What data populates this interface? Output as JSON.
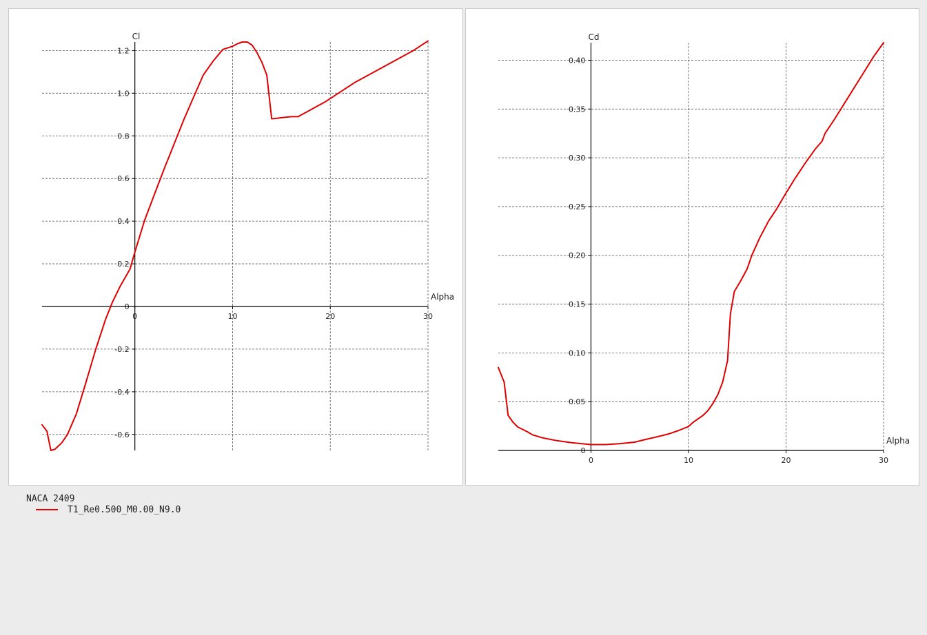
{
  "colors": {
    "series": "#e00000",
    "axis": "#000000",
    "grid": "#555555"
  },
  "legend": {
    "foil_name": "NACA 2409",
    "series_name": "T1_Re0.500_M0.00_N9.0"
  },
  "chart_data": [
    {
      "type": "line",
      "title": "",
      "xlabel": "Alpha",
      "ylabel": "Cl",
      "xlim": [
        -9.5,
        30
      ],
      "ylim": [
        -0.675,
        1.24
      ],
      "grid": true,
      "x_ticks": [
        0,
        10,
        20,
        30
      ],
      "x_tick_labels": [
        "0",
        "10",
        "20",
        "30"
      ],
      "y_ticks": [
        -0.6,
        -0.4,
        -0.2,
        0,
        0.2,
        0.4,
        0.6,
        0.8,
        1.0,
        1.2
      ],
      "y_tick_labels": [
        "-0.6",
        "-0.4",
        "-0.2",
        "0",
        "0.2",
        "0.4",
        "0.6",
        "0.8",
        "1.0",
        "1.2"
      ],
      "series": [
        {
          "x": [
            -9.5,
            -9.0,
            -8.5,
            -8.0,
            -7.5,
            -7.0,
            -6.5,
            -6.0,
            -5.5,
            -5.0,
            -4.5,
            -4.0,
            -3.5,
            -3.0,
            -2.5,
            -2.0,
            -1.5,
            -1.0,
            -0.5,
            0.0,
            0.5,
            1.0,
            2.0,
            3.0,
            4.0,
            5.0,
            6.0,
            7.0,
            8.0,
            9.0,
            10.0,
            10.5,
            11.0,
            11.5,
            12.0,
            12.5,
            13.0,
            13.5,
            14.0,
            14.5,
            15.0,
            16.0,
            17.0,
            18.0,
            19.0,
            20.0,
            21.0,
            22.0,
            23.0,
            24.0,
            25.0,
            26.0,
            27.0,
            28.0,
            29.0,
            30.0
          ],
          "y": [
            -0.555,
            -0.585,
            -0.675,
            -0.665,
            -0.635,
            -0.595,
            -0.555,
            -0.5,
            -0.43,
            -0.355,
            -0.28,
            -0.205,
            -0.135,
            -0.065,
            0.0,
            0.055,
            0.105,
            0.15,
            0.205,
            0.26,
            0.33,
            0.39,
            0.51,
            0.63,
            0.745,
            0.855,
            0.96,
            1.06,
            1.135,
            1.21,
            1.235,
            1.24,
            1.225,
            1.185,
            1.135,
            1.075,
            0.875,
            0.88,
            0.885,
            0.885,
            0.89,
            0.915,
            0.95,
            0.975,
            1.005,
            1.035,
            1.065,
            1.09,
            1.115,
            1.14,
            1.165,
            1.19,
            1.215,
            1.24,
            1.245,
            1.245
          ],
          "x_fit": [
            -9.5,
            -9.0,
            -8.6,
            -8.2,
            -7.5,
            -6.9,
            -6.0,
            -5.0,
            -4.0,
            -3.0,
            -2.3,
            -1.5,
            -0.5,
            0.0,
            1.0,
            2.0,
            3.0,
            4.0,
            5.0,
            6.0,
            7.0,
            8.0,
            9.0,
            10.0,
            10.5,
            11.0,
            11.5,
            12.0,
            12.5,
            13.0,
            13.5,
            14.0,
            14.5,
            15.0,
            16.0,
            16.7,
            17.5,
            18.5,
            19.5,
            20.5,
            21.5,
            22.5,
            23.5,
            24.5,
            25.5,
            26.5,
            27.5,
            28.5,
            29.5,
            30.0
          ],
          "y_fit": [
            -0.555,
            -0.585,
            -0.675,
            -0.67,
            -0.64,
            -0.6,
            -0.505,
            -0.355,
            -0.2,
            -0.06,
            0.02,
            0.095,
            0.175,
            0.255,
            0.405,
            0.525,
            0.645,
            0.76,
            0.875,
            0.98,
            1.085,
            1.15,
            1.205,
            1.22,
            1.232,
            1.24,
            1.24,
            1.225,
            1.19,
            1.145,
            1.085,
            0.88,
            0.882,
            0.885,
            0.89,
            0.89,
            0.91,
            0.935,
            0.96,
            0.99,
            1.02,
            1.05,
            1.075,
            1.1,
            1.125,
            1.15,
            1.175,
            1.2,
            1.23,
            1.245
          ]
        }
      ]
    },
    {
      "type": "line",
      "title": "",
      "xlabel": "Alpha",
      "ylabel": "Cd",
      "xlim": [
        -9.5,
        30
      ],
      "ylim": [
        0,
        0.418
      ],
      "grid": true,
      "x_ticks": [
        0,
        10,
        20,
        30
      ],
      "x_tick_labels": [
        "0",
        "10",
        "20",
        "30"
      ],
      "y_ticks": [
        0,
        0.05,
        0.1,
        0.15,
        0.2,
        0.25,
        0.3,
        0.35,
        0.4
      ],
      "y_tick_labels": [
        "0",
        "0.05",
        "0.10",
        "0.15",
        "0.20",
        "0.25",
        "0.30",
        "0.35",
        "0.40"
      ],
      "series": [
        {
          "x": [
            -9.5,
            -9.0,
            -8.5,
            -8.0,
            -7.5,
            -7.0,
            -6.5,
            -6.0,
            -5.0,
            -4.0,
            -3.0,
            -2.0,
            -1.0,
            0.0,
            1.0,
            2.0,
            3.0,
            4.0,
            5.0,
            6.0,
            7.0,
            8.0,
            9.0,
            10.0,
            10.5,
            11.0,
            11.5,
            12.0,
            12.5,
            13.0,
            13.5,
            14.0,
            14.5,
            15.0,
            15.5,
            16.0,
            16.5,
            17.0,
            17.5,
            18.0,
            18.5,
            19.0,
            20.0,
            21.0,
            22.0,
            23.0,
            24.0,
            25.0,
            26.0,
            27.0,
            28.0,
            29.0,
            30.0
          ],
          "y": [
            0.085,
            0.07,
            0.035,
            0.028,
            0.023,
            0.02,
            0.018,
            0.015,
            0.012,
            0.01,
            0.009,
            0.008,
            0.007,
            0.006,
            0.006,
            0.0065,
            0.007,
            0.008,
            0.009,
            0.0115,
            0.014,
            0.0165,
            0.02,
            0.024,
            0.028,
            0.033,
            0.038,
            0.045,
            0.053,
            0.063,
            0.075,
            0.092,
            0.163,
            0.172,
            0.182,
            0.192,
            0.204,
            0.214,
            0.224,
            0.233,
            0.24,
            0.246,
            0.265,
            0.282,
            0.298,
            0.312,
            0.328,
            0.344,
            0.36,
            0.376,
            0.392,
            0.406,
            0.418
          ],
          "x_fit": [
            -9.5,
            -8.9,
            -8.5,
            -8.0,
            -7.5,
            -6.5,
            -6.0,
            -5.0,
            -3.5,
            -2.0,
            -1.0,
            0.0,
            1.5,
            3.0,
            4.5,
            5.5,
            7.0,
            8.0,
            9.0,
            10.0,
            10.5,
            11.5,
            12.0,
            12.5,
            13.0,
            13.5,
            14.0,
            14.3,
            14.7,
            15.3,
            16.0,
            16.5,
            17.3,
            18.2,
            19.0,
            20.0,
            21.0,
            22.0,
            23.0,
            23.7,
            24.0,
            25.0,
            26.0,
            27.0,
            28.0,
            29.0,
            30.0
          ],
          "y_fit": [
            0.085,
            0.07,
            0.036,
            0.029,
            0.024,
            0.019,
            0.016,
            0.013,
            0.01,
            0.008,
            0.007,
            0.006,
            0.006,
            0.007,
            0.0085,
            0.011,
            0.0145,
            0.017,
            0.0205,
            0.0245,
            0.029,
            0.036,
            0.041,
            0.048,
            0.057,
            0.07,
            0.092,
            0.14,
            0.163,
            0.173,
            0.186,
            0.2,
            0.218,
            0.235,
            0.247,
            0.264,
            0.28,
            0.295,
            0.309,
            0.317,
            0.325,
            0.34,
            0.356,
            0.372,
            0.388,
            0.404,
            0.418
          ]
        }
      ]
    }
  ]
}
